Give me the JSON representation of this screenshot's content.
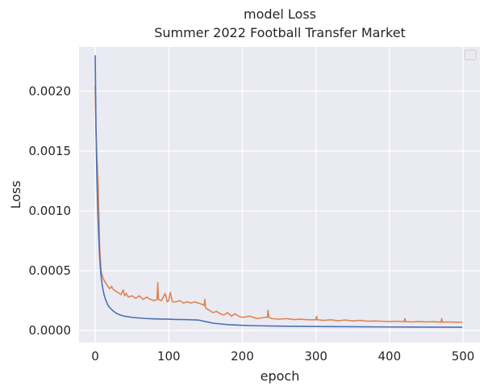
{
  "chart_data": {
    "type": "line",
    "title": "model Loss",
    "subtitle": "Summer 2022 Football Transfer Market",
    "xlabel": "epoch",
    "ylabel": "Loss",
    "xlim": [
      -22,
      523
    ],
    "ylim": [
      -0.0001,
      0.00237
    ],
    "xticks": [
      0,
      100,
      200,
      300,
      400,
      500
    ],
    "xtick_labels": [
      "0",
      "100",
      "200",
      "300",
      "400",
      "500"
    ],
    "yticks": [
      0.0,
      0.0005,
      0.001,
      0.0015,
      0.002
    ],
    "ytick_labels": [
      "0.0000",
      "0.0005",
      "0.0010",
      "0.0015",
      "0.0020"
    ],
    "grid": true,
    "legend": "top-right",
    "colors": {
      "background": "#eaeaf2",
      "grid": "#ffffff",
      "series_1": "#4c72b0",
      "series_2": "#dd8452"
    },
    "series": [
      {
        "x": [
          0,
          1,
          2,
          3,
          4,
          5,
          6,
          7,
          8,
          10,
          12,
          14,
          16,
          18,
          20,
          25,
          30,
          35,
          40,
          50,
          60,
          70,
          80,
          90,
          100,
          110,
          120,
          130,
          140,
          150,
          160,
          180,
          200,
          220,
          250,
          300,
          350,
          400,
          450,
          499
        ],
        "values": [
          0.0023,
          0.0017,
          0.00135,
          0.0011,
          0.0009,
          0.00075,
          0.00062,
          0.00052,
          0.00045,
          0.00036,
          0.0003,
          0.00026,
          0.00023,
          0.000205,
          0.00019,
          0.00016,
          0.00014,
          0.000128,
          0.00012,
          0.00011,
          0.000105,
          0.0001,
          9.8e-05,
          9.6e-05,
          9.5e-05,
          9.3e-05,
          9.2e-05,
          9e-05,
          8.8e-05,
          7.5e-05,
          6.2e-05,
          5e-05,
          4.4e-05,
          4e-05,
          3.7e-05,
          3.4e-05,
          3.2e-05,
          3e-05,
          2.9e-05,
          2.8e-05
        ]
      },
      {
        "x": [
          0,
          1,
          2,
          3,
          4,
          5,
          6,
          7,
          8,
          10,
          12,
          14,
          16,
          18,
          20,
          22,
          25,
          28,
          30,
          33,
          35,
          38,
          40,
          42,
          45,
          50,
          55,
          60,
          65,
          70,
          75,
          80,
          84,
          85,
          86,
          90,
          95,
          98,
          100,
          102,
          105,
          110,
          115,
          120,
          125,
          130,
          135,
          140,
          145,
          148,
          149,
          150,
          152,
          155,
          160,
          165,
          170,
          175,
          180,
          185,
          190,
          195,
          200,
          210,
          220,
          230,
          234,
          235,
          236,
          240,
          250,
          260,
          270,
          280,
          290,
          300,
          301,
          302,
          310,
          320,
          330,
          340,
          350,
          360,
          370,
          380,
          390,
          400,
          410,
          420,
          421,
          422,
          430,
          440,
          450,
          460,
          470,
          471,
          472,
          480,
          490,
          499
        ],
        "values": [
          0.00205,
          0.0017,
          0.0015,
          0.00135,
          0.0012,
          0.00095,
          0.0007,
          0.00058,
          0.0005,
          0.00045,
          0.00042,
          0.0004,
          0.00038,
          0.00036,
          0.00035,
          0.00037,
          0.00034,
          0.00033,
          0.00032,
          0.00031,
          0.0003,
          0.00034,
          0.00029,
          0.00031,
          0.00028,
          0.00029,
          0.00027,
          0.00029,
          0.00026,
          0.00028,
          0.00026,
          0.00025,
          0.00026,
          0.0004,
          0.00026,
          0.00025,
          0.00031,
          0.00024,
          0.00025,
          0.00032,
          0.00024,
          0.00024,
          0.00025,
          0.00023,
          0.00024,
          0.00023,
          0.00024,
          0.00023,
          0.00022,
          0.00021,
          0.00026,
          0.00019,
          0.00018,
          0.00017,
          0.00015,
          0.00016,
          0.00014,
          0.00013,
          0.00015,
          0.00012,
          0.00014,
          0.00012,
          0.00011,
          0.00012,
          0.0001,
          0.00011,
          0.00011,
          0.00017,
          0.00011,
          0.0001,
          9.5e-05,
          0.0001,
          9.2e-05,
          9.5e-05,
          9e-05,
          9e-05,
          0.00012,
          9e-05,
          8.5e-05,
          9e-05,
          8.2e-05,
          8.8e-05,
          8e-05,
          8.5e-05,
          7.8e-05,
          8e-05,
          7.8e-05,
          7.5e-05,
          7.8e-05,
          7.4e-05,
          0.0001,
          7.4e-05,
          7.2e-05,
          7.5e-05,
          7.2e-05,
          7.4e-05,
          7e-05,
          0.0001,
          7e-05,
          7.2e-05,
          7e-05,
          7e-05
        ]
      }
    ]
  }
}
